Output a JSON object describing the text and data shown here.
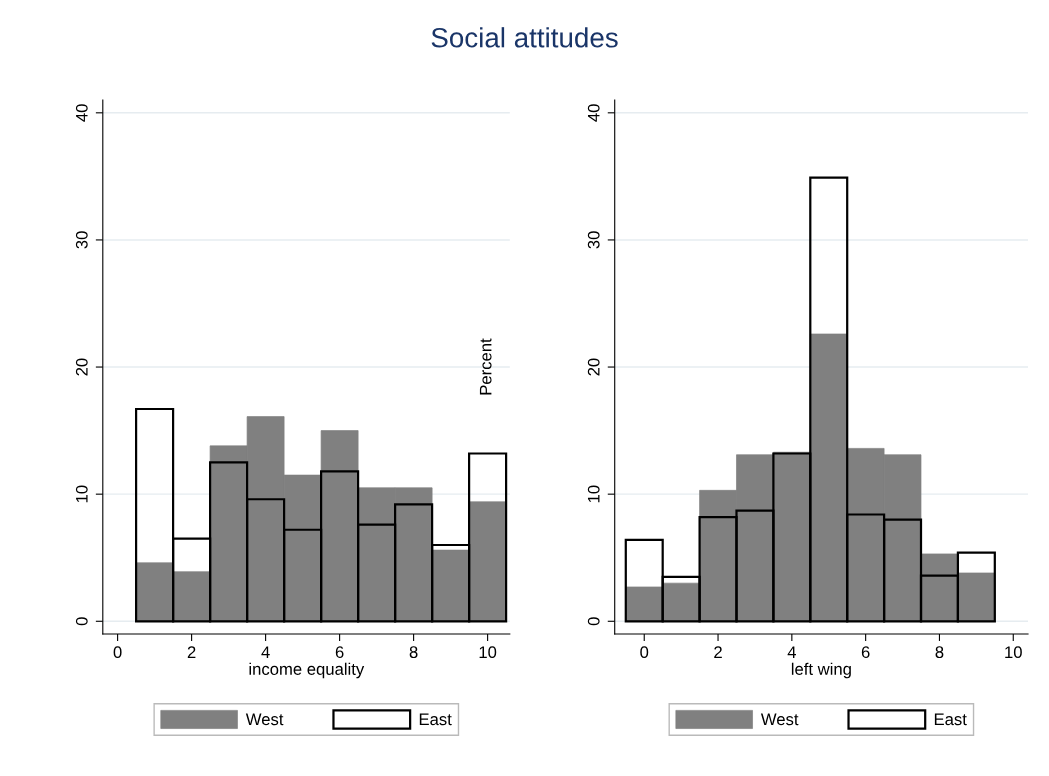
{
  "chart_data": [
    {
      "type": "histogram",
      "title": "Social attitudes",
      "xlabel": "income equality",
      "bins": [
        0.5,
        1.5,
        2.5,
        3.5,
        4.5,
        5.5,
        6.5,
        7.5,
        8.5,
        9.5,
        10.5
      ],
      "series": [
        {
          "name": "West",
          "color": "#808080",
          "values": [
            4.6,
            3.9,
            13.8,
            16.1,
            11.5,
            15.0,
            10.5,
            10.5,
            5.6,
            9.4
          ]
        },
        {
          "name": "East",
          "color": "#000000",
          "values": [
            16.7,
            6.5,
            12.5,
            9.6,
            7.2,
            11.8,
            7.6,
            9.2,
            6.0,
            13.2
          ]
        }
      ],
      "xlim": [
        -0.4,
        10.6
      ],
      "xticks": [
        0,
        2,
        4,
        6,
        8,
        10
      ],
      "ylim": [
        -1,
        41
      ],
      "yticks": [
        0,
        10,
        20,
        30,
        40
      ],
      "grid": "y",
      "legend": "bottom"
    },
    {
      "type": "histogram",
      "xlabel": "left wing",
      "ylabel": "Percent",
      "bins": [
        -0.5,
        0.5,
        1.5,
        2.5,
        3.5,
        4.5,
        5.5,
        6.5,
        7.5,
        8.5,
        9.5
      ],
      "series": [
        {
          "name": "West",
          "color": "#808080",
          "values": [
            2.7,
            3.0,
            10.3,
            13.1,
            13.3,
            22.6,
            13.6,
            13.1,
            5.3,
            3.8
          ]
        },
        {
          "name": "East",
          "color": "#000000",
          "values": [
            6.4,
            3.5,
            8.2,
            8.7,
            13.2,
            34.9,
            8.4,
            8.0,
            3.6,
            5.4
          ]
        }
      ],
      "xlim": [
        -0.8,
        10.4
      ],
      "xticks": [
        0,
        2,
        4,
        6,
        8,
        10
      ],
      "ylim": [
        -1,
        41
      ],
      "yticks": [
        0,
        10,
        20,
        30,
        40
      ],
      "grid": "y",
      "legend": "bottom"
    }
  ]
}
